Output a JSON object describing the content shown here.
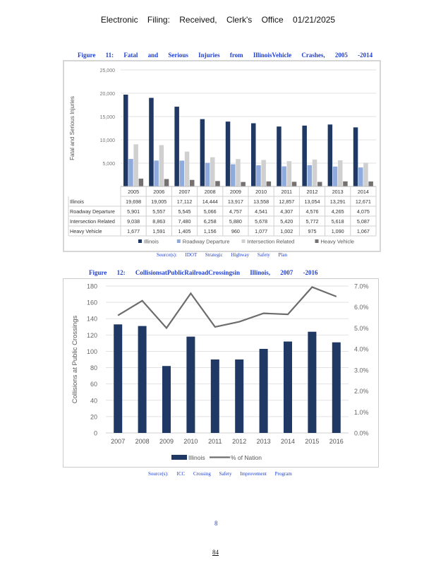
{
  "header": "Electronic Filing: Received, Clerk's Office 01/21/2025",
  "figure11": {
    "caption": "Figure 11: Fatal and Serious Injuries from IllinoisVehicle Crashes, 2005 -2014",
    "source": "Source(s): IDOT Strategic Highway Safety Plan"
  },
  "figure12": {
    "caption": "Figure 12: CollisionsatPublicRailroadCrossingsin Illinois, 2007 -2016",
    "source": "Source(s): ICC Crossing Safety Improvement Program"
  },
  "footer": {
    "page_number": "8",
    "pdf_page": "84"
  },
  "chart_data": [
    {
      "type": "bar",
      "ylabel": "Fatal and Serious Injuries",
      "ylim": [
        0,
        25000
      ],
      "yticks": [
        "",
        "5,000",
        "10,000",
        "15,000",
        "20,000",
        "25,000"
      ],
      "grid": true,
      "legend": "bottom",
      "data_table": true,
      "categories": [
        "2005",
        "2006",
        "2007",
        "2008",
        "2009",
        "2010",
        "2011",
        "2012",
        "2013",
        "2014"
      ],
      "series": [
        {
          "name": "Illinois",
          "color": "#1f3864",
          "values": [
            19698,
            19005,
            17112,
            14444,
            13917,
            13558,
            12857,
            13054,
            13291,
            12671
          ],
          "labels": [
            "19,698",
            "19,005",
            "17,112",
            "14,444",
            "13,917",
            "13,558",
            "12,857",
            "13,054",
            "13,291",
            "12,671"
          ]
        },
        {
          "name": "Roadway Departure",
          "table_name": "Roadway Departure",
          "color": "#8faadc",
          "values": [
            5901,
            5557,
            5545,
            5066,
            4757,
            4541,
            4307,
            4576,
            4265,
            4075
          ],
          "labels": [
            "5,901",
            "5,557",
            "5,545",
            "5,066",
            "4,757",
            "4,541",
            "4,307",
            "4,576",
            "4,265",
            "4,075"
          ]
        },
        {
          "name": "Intersection Related",
          "color": "#d0d0d0",
          "values": [
            9038,
            8863,
            7480,
            6258,
            5880,
            5678,
            5420,
            5772,
            5618,
            5087
          ],
          "labels": [
            "9,038",
            "8,863",
            "7,480",
            "6,258",
            "5,880",
            "5,678",
            "5,420",
            "5,772",
            "5,618",
            "5,087"
          ]
        },
        {
          "name": "Heavy Vehicle",
          "color": "#767171",
          "values": [
            1677,
            1591,
            1405,
            1156,
            960,
            1077,
            1002,
            975,
            1090,
            1067
          ],
          "labels": [
            "1,677",
            "1,591",
            "1,405",
            "1,156",
            "960",
            "1,077",
            "1,002",
            "975",
            "1,090",
            "1,067"
          ]
        }
      ]
    },
    {
      "type": "bar+line",
      "ylabel": "Collisions at Public Crossings",
      "ylim": [
        0,
        180
      ],
      "yticks": [
        "0",
        "20",
        "40",
        "60",
        "80",
        "100",
        "120",
        "140",
        "160",
        "180"
      ],
      "y2lim": [
        0,
        7
      ],
      "y2ticks": [
        "0.0%",
        "1.0%",
        "2.0%",
        "3.0%",
        "4.0%",
        "5.0%",
        "6.0%",
        "7.0%"
      ],
      "grid": true,
      "legend": "bottom",
      "categories": [
        "2007",
        "2008",
        "2009",
        "2010",
        "2011",
        "2012",
        "2013",
        "2014",
        "2015",
        "2016"
      ],
      "series": [
        {
          "name": "Illinois",
          "type": "bar",
          "axis": "left",
          "color": "#1f3864",
          "values": [
            133,
            131,
            82,
            118,
            90,
            90,
            103,
            112,
            124,
            111
          ]
        },
        {
          "name": "% of Nation",
          "type": "line",
          "axis": "right",
          "color": "#6d6d6d",
          "values": [
            5.6,
            6.3,
            5.0,
            6.65,
            5.05,
            5.3,
            5.7,
            5.65,
            6.95,
            6.5
          ]
        }
      ]
    }
  ]
}
